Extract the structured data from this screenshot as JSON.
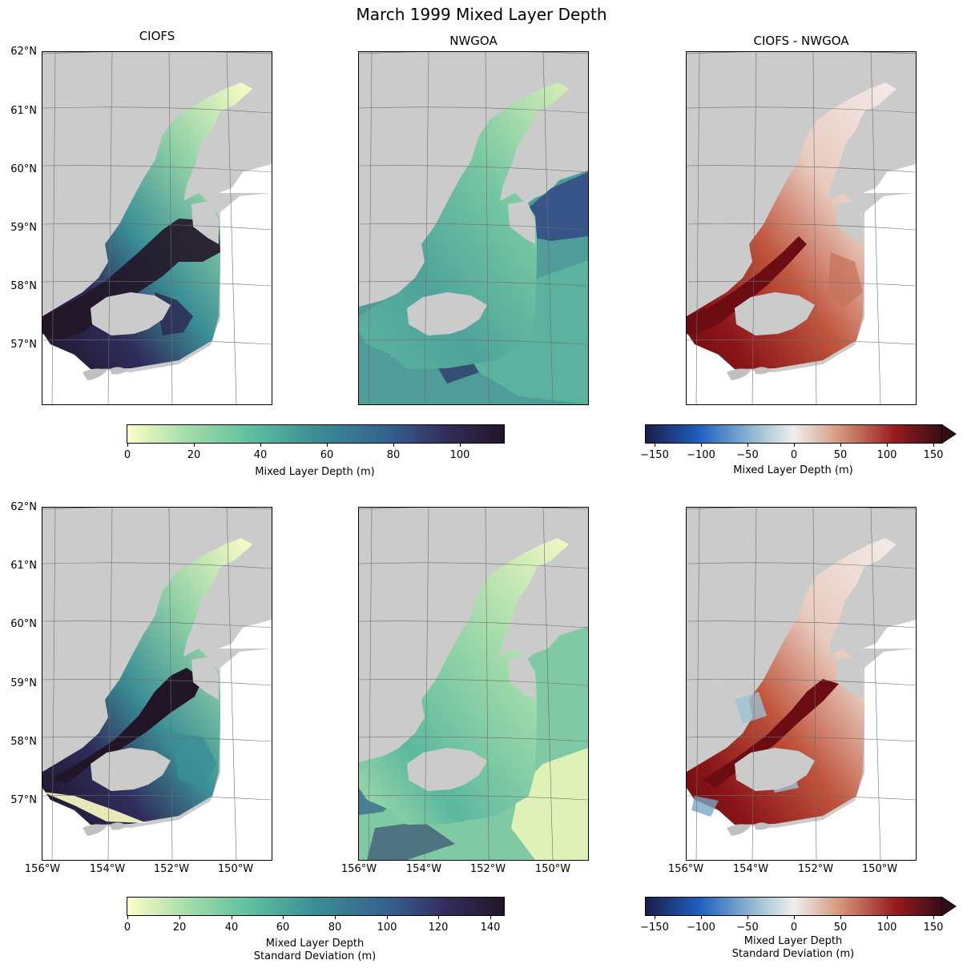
{
  "title": "March 1999 Mixed Layer Depth",
  "column_titles": [
    "CIOFS",
    "NWGOA",
    "CIOFS - NWGOA"
  ],
  "lat_labels": [
    "62°N",
    "61°N",
    "60°N",
    "59°N",
    "58°N",
    "57°N"
  ],
  "lon_labels": [
    "156°W",
    "154°W",
    "152°W",
    "150°W"
  ],
  "colors": {
    "land": "#cbcbcb",
    "deep_colormap": [
      "#fefec8",
      "#a8deaa",
      "#5bbf9f",
      "#3a8e96",
      "#355e8e",
      "#342c5a",
      "#221527"
    ],
    "diverging_colormap": [
      "#1b1e4b",
      "#1f5fc0",
      "#9ec2d4",
      "#f0eeed",
      "#d49378",
      "#9a1b1f",
      "#340d14"
    ]
  },
  "colorbars": {
    "top_left": {
      "ticks": [
        "0",
        "20",
        "40",
        "60",
        "80",
        "100"
      ],
      "label": "Mixed Layer Depth (m)",
      "range": [
        0,
        113
      ]
    },
    "top_right": {
      "ticks": [
        "−150",
        "−100",
        "−50",
        "0",
        "50",
        "100",
        "150"
      ],
      "label": "Mixed Layer Depth (m)",
      "range": [
        -160,
        160
      ],
      "extend": "max"
    },
    "bottom_left": {
      "ticks": [
        "0",
        "20",
        "40",
        "60",
        "80",
        "100",
        "120",
        "140"
      ],
      "label_line1": "Mixed Layer Depth",
      "label_line2": "Standard Deviation (m)",
      "range": [
        0,
        145
      ]
    },
    "bottom_right": {
      "ticks": [
        "−150",
        "−100",
        "−50",
        "0",
        "50",
        "100",
        "150"
      ],
      "label_line1": "Mixed Layer Depth",
      "label_line2": "Standard Deviation (m)",
      "range": [
        -160,
        160
      ],
      "extend": "max"
    }
  }
}
